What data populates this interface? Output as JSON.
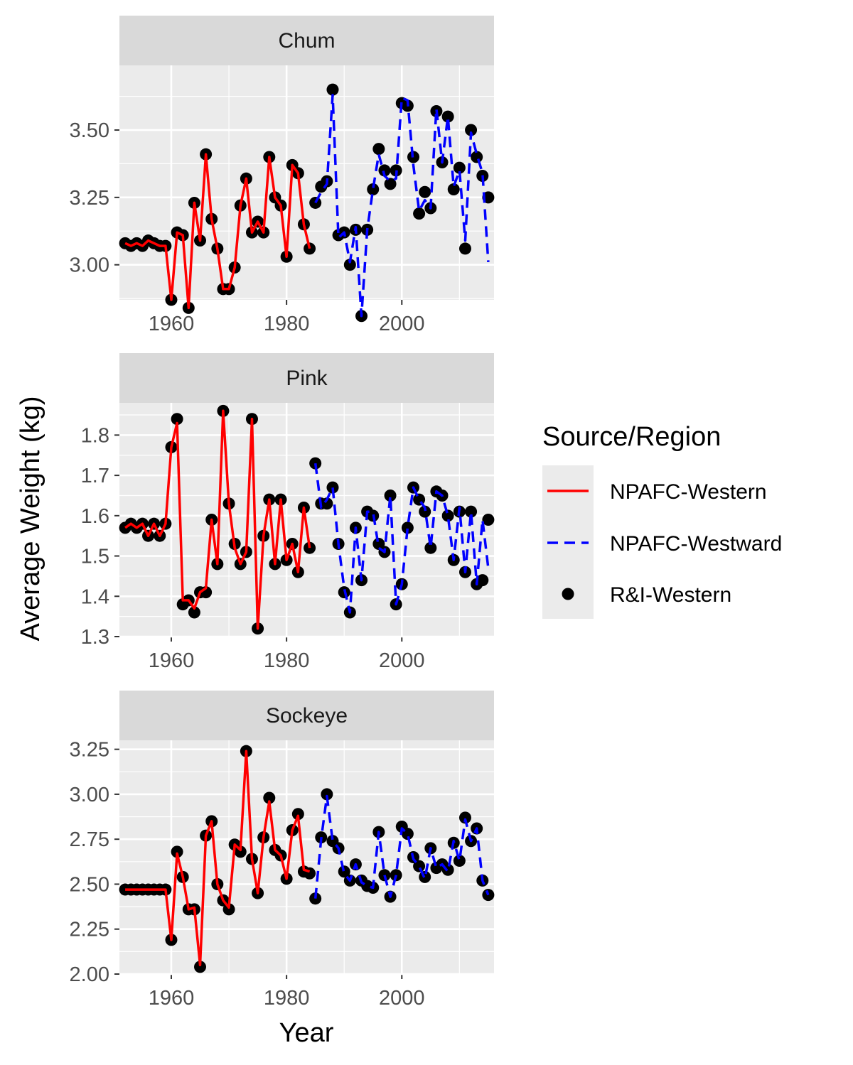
{
  "chart_data": {
    "type": "line",
    "xlabel": "Year",
    "ylabel": "Average Weight (kg)",
    "xlim": [
      1951,
      2016
    ],
    "x_ticks": [
      1960,
      1980,
      2000
    ],
    "x_tick_labels": [
      "1960",
      "1980",
      "2000"
    ],
    "legend": {
      "title": "Source/Region",
      "position": "right",
      "entries": [
        {
          "label": "NPAFC-Western",
          "color": "#ff0000",
          "style": "solid line"
        },
        {
          "label": "NPAFC-Westward",
          "color": "#0000ff",
          "style": "dashed line"
        },
        {
          "label": "R&I-Western",
          "color": "#000000",
          "style": "point"
        }
      ]
    },
    "grid": true,
    "facets": [
      {
        "title": "Chum",
        "ylim": [
          2.87,
          3.74
        ],
        "y_ticks": [
          3.0,
          3.25,
          3.5
        ],
        "y_tick_labels": [
          "3.00",
          "3.25",
          "3.50"
        ],
        "series": [
          {
            "name": "NPAFC-Western",
            "x": [
              1952,
              1953,
              1954,
              1955,
              1956,
              1957,
              1958,
              1959,
              1960,
              1961,
              1962,
              1963,
              1964,
              1965,
              1966,
              1967,
              1968,
              1969,
              1970,
              1971,
              1972,
              1973,
              1974,
              1975,
              1976,
              1977,
              1978,
              1979,
              1980,
              1981,
              1982,
              1983,
              1984
            ],
            "y": [
              3.08,
              3.07,
              3.08,
              3.07,
              3.09,
              3.08,
              3.07,
              3.07,
              2.87,
              3.12,
              3.11,
              2.84,
              3.23,
              3.09,
              3.41,
              3.17,
              3.06,
              2.91,
              2.91,
              2.99,
              3.22,
              3.32,
              3.12,
              3.16,
              3.12,
              3.4,
              3.25,
              3.22,
              3.03,
              3.37,
              3.34,
              3.15,
              3.06
            ]
          },
          {
            "name": "NPAFC-Westward",
            "x": [
              1985,
              1986,
              1987,
              1988,
              1989,
              1990,
              1991,
              1992,
              1993,
              1994,
              1995,
              1996,
              1997,
              1998,
              1999,
              2000,
              2001,
              2002,
              2003,
              2004,
              2005,
              2006,
              2007,
              2008,
              2009,
              2010,
              2011,
              2012,
              2013,
              2014,
              2015
            ],
            "y": [
              3.23,
              3.27,
              3.3,
              3.63,
              3.1,
              3.12,
              3.01,
              3.14,
              2.81,
              3.13,
              3.28,
              3.41,
              3.33,
              3.31,
              3.32,
              3.62,
              3.61,
              3.37,
              3.2,
              3.24,
              3.21,
              3.58,
              3.38,
              3.55,
              3.29,
              3.35,
              3.09,
              3.49,
              3.41,
              3.34,
              3.01
            ]
          },
          {
            "name": "R&I-Western",
            "x": [
              1952,
              1953,
              1954,
              1955,
              1956,
              1957,
              1958,
              1959,
              1960,
              1961,
              1962,
              1963,
              1964,
              1965,
              1966,
              1967,
              1968,
              1969,
              1970,
              1971,
              1972,
              1973,
              1974,
              1975,
              1976,
              1977,
              1978,
              1979,
              1980,
              1981,
              1982,
              1983,
              1984,
              1985,
              1986,
              1987,
              1988,
              1989,
              1990,
              1991,
              1992,
              1993,
              1994,
              1995,
              1996,
              1997,
              1998,
              1999,
              2000,
              2001,
              2002,
              2003,
              2004,
              2005,
              2006,
              2007,
              2008,
              2009,
              2010,
              2011,
              2012,
              2013,
              2014,
              2015
            ],
            "y": [
              3.08,
              3.07,
              3.08,
              3.07,
              3.09,
              3.08,
              3.07,
              3.07,
              2.87,
              3.12,
              3.11,
              2.84,
              3.23,
              3.09,
              3.41,
              3.17,
              3.06,
              2.91,
              2.91,
              2.99,
              3.22,
              3.32,
              3.12,
              3.16,
              3.12,
              3.4,
              3.25,
              3.22,
              3.03,
              3.37,
              3.34,
              3.15,
              3.06,
              3.23,
              3.29,
              3.31,
              3.65,
              3.11,
              3.12,
              3.0,
              3.13,
              2.81,
              3.13,
              3.28,
              3.43,
              3.35,
              3.3,
              3.35,
              3.6,
              3.59,
              3.4,
              3.19,
              3.27,
              3.21,
              3.57,
              3.38,
              3.55,
              3.28,
              3.36,
              3.06,
              3.5,
              3.4,
              3.33,
              3.25
            ]
          }
        ]
      },
      {
        "title": "Pink",
        "ylim": [
          1.3,
          1.88
        ],
        "y_ticks": [
          1.3,
          1.4,
          1.5,
          1.6,
          1.7,
          1.8
        ],
        "y_tick_labels": [
          "1.3",
          "1.4",
          "1.5",
          "1.6",
          "1.7",
          "1.8"
        ],
        "series": [
          {
            "name": "NPAFC-Western",
            "x": [
              1952,
              1953,
              1954,
              1955,
              1956,
              1957,
              1958,
              1959,
              1960,
              1961,
              1962,
              1963,
              1964,
              1965,
              1966,
              1967,
              1968,
              1969,
              1970,
              1971,
              1972,
              1973,
              1974,
              1975,
              1976,
              1977,
              1978,
              1979,
              1980,
              1981,
              1982,
              1983,
              1984
            ],
            "y": [
              1.57,
              1.58,
              1.57,
              1.58,
              1.55,
              1.58,
              1.55,
              1.58,
              1.77,
              1.83,
              1.39,
              1.39,
              1.37,
              1.41,
              1.42,
              1.59,
              1.48,
              1.86,
              1.63,
              1.52,
              1.48,
              1.51,
              1.84,
              1.32,
              1.55,
              1.64,
              1.48,
              1.64,
              1.49,
              1.53,
              1.46,
              1.62,
              1.52
            ]
          },
          {
            "name": "NPAFC-Westward",
            "x": [
              1985,
              1986,
              1987,
              1988,
              1989,
              1990,
              1991,
              1992,
              1993,
              1994,
              1995,
              1996,
              1997,
              1998,
              1999,
              2000,
              2001,
              2002,
              2003,
              2004,
              2005,
              2006,
              2007,
              2008,
              2009,
              2010,
              2011,
              2012,
              2013,
              2014,
              2015
            ],
            "y": [
              1.73,
              1.62,
              1.64,
              1.67,
              1.53,
              1.42,
              1.36,
              1.57,
              1.44,
              1.61,
              1.61,
              1.52,
              1.51,
              1.65,
              1.38,
              1.43,
              1.57,
              1.67,
              1.64,
              1.62,
              1.52,
              1.66,
              1.65,
              1.6,
              1.49,
              1.62,
              1.46,
              1.61,
              1.43,
              1.59,
              1.47
            ]
          },
          {
            "name": "R&I-Western",
            "x": [
              1952,
              1953,
              1954,
              1955,
              1956,
              1957,
              1958,
              1959,
              1960,
              1961,
              1962,
              1963,
              1964,
              1965,
              1966,
              1967,
              1968,
              1969,
              1970,
              1971,
              1972,
              1973,
              1974,
              1975,
              1976,
              1977,
              1978,
              1979,
              1980,
              1981,
              1982,
              1983,
              1984,
              1985,
              1986,
              1987,
              1988,
              1989,
              1990,
              1991,
              1992,
              1993,
              1994,
              1995,
              1996,
              1997,
              1998,
              1999,
              2000,
              2001,
              2002,
              2003,
              2004,
              2005,
              2006,
              2007,
              2008,
              2009,
              2010,
              2011,
              2012,
              2013,
              2014,
              2015
            ],
            "y": [
              1.57,
              1.58,
              1.57,
              1.58,
              1.55,
              1.58,
              1.55,
              1.58,
              1.77,
              1.84,
              1.38,
              1.39,
              1.36,
              1.41,
              1.41,
              1.59,
              1.48,
              1.86,
              1.63,
              1.53,
              1.48,
              1.51,
              1.84,
              1.32,
              1.55,
              1.64,
              1.48,
              1.64,
              1.49,
              1.53,
              1.46,
              1.62,
              1.52,
              1.73,
              1.63,
              1.63,
              1.67,
              1.53,
              1.41,
              1.36,
              1.57,
              1.44,
              1.61,
              1.6,
              1.53,
              1.51,
              1.65,
              1.38,
              1.43,
              1.57,
              1.67,
              1.64,
              1.61,
              1.52,
              1.66,
              1.65,
              1.6,
              1.49,
              1.61,
              1.46,
              1.61,
              1.43,
              1.44,
              1.59
            ]
          }
        ]
      },
      {
        "title": "Sockeye",
        "ylim": [
          2.0,
          3.3
        ],
        "y_ticks": [
          2.0,
          2.25,
          2.5,
          2.75,
          3.0,
          3.25
        ],
        "y_tick_labels": [
          "2.00",
          "2.25",
          "2.50",
          "2.75",
          "3.00",
          "3.25"
        ],
        "series": [
          {
            "name": "NPAFC-Western",
            "x": [
              1952,
              1953,
              1954,
              1955,
              1956,
              1957,
              1958,
              1959,
              1960,
              1961,
              1962,
              1963,
              1964,
              1965,
              1966,
              1967,
              1968,
              1969,
              1970,
              1971,
              1972,
              1973,
              1974,
              1975,
              1976,
              1977,
              1978,
              1979,
              1980,
              1981,
              1982,
              1983,
              1984
            ],
            "y": [
              2.47,
              2.47,
              2.47,
              2.47,
              2.47,
              2.47,
              2.47,
              2.47,
              2.19,
              2.67,
              2.54,
              2.36,
              2.37,
              2.05,
              2.77,
              2.85,
              2.5,
              2.41,
              2.37,
              2.72,
              2.69,
              3.24,
              2.64,
              2.45,
              2.76,
              2.96,
              2.69,
              2.66,
              2.53,
              2.8,
              2.88,
              2.58,
              2.57
            ]
          },
          {
            "name": "NPAFC-Westward",
            "x": [
              1985,
              1986,
              1987,
              1988,
              1989,
              1990,
              1991,
              1992,
              1993,
              1994,
              1995,
              1996,
              1997,
              1998,
              1999,
              2000,
              2001,
              2002,
              2003,
              2004,
              2005,
              2006,
              2007,
              2008,
              2009,
              2010,
              2011,
              2012,
              2013,
              2014,
              2015
            ],
            "y": [
              2.42,
              2.75,
              2.99,
              2.74,
              2.7,
              2.56,
              2.52,
              2.61,
              2.51,
              2.49,
              2.48,
              2.79,
              2.55,
              2.43,
              2.55,
              2.81,
              2.78,
              2.64,
              2.6,
              2.53,
              2.7,
              2.59,
              2.61,
              2.57,
              2.74,
              2.63,
              2.86,
              2.74,
              2.81,
              2.52,
              2.44
            ]
          },
          {
            "name": "R&I-Western",
            "x": [
              1952,
              1953,
              1954,
              1955,
              1956,
              1957,
              1958,
              1959,
              1960,
              1961,
              1962,
              1963,
              1964,
              1965,
              1966,
              1967,
              1968,
              1969,
              1970,
              1971,
              1972,
              1973,
              1974,
              1975,
              1976,
              1977,
              1978,
              1979,
              1980,
              1981,
              1982,
              1983,
              1984,
              1985,
              1986,
              1987,
              1988,
              1989,
              1990,
              1991,
              1992,
              1993,
              1994,
              1995,
              1996,
              1997,
              1998,
              1999,
              2000,
              2001,
              2002,
              2003,
              2004,
              2005,
              2006,
              2007,
              2008,
              2009,
              2010,
              2011,
              2012,
              2013,
              2014,
              2015
            ],
            "y": [
              2.47,
              2.47,
              2.47,
              2.47,
              2.47,
              2.47,
              2.47,
              2.47,
              2.19,
              2.68,
              2.54,
              2.36,
              2.36,
              2.04,
              2.77,
              2.85,
              2.5,
              2.41,
              2.36,
              2.72,
              2.68,
              3.24,
              2.64,
              2.45,
              2.76,
              2.98,
              2.69,
              2.66,
              2.53,
              2.8,
              2.89,
              2.57,
              2.56,
              2.42,
              2.76,
              3.0,
              2.74,
              2.7,
              2.57,
              2.52,
              2.61,
              2.52,
              2.49,
              2.48,
              2.79,
              2.55,
              2.43,
              2.55,
              2.82,
              2.78,
              2.65,
              2.6,
              2.54,
              2.7,
              2.59,
              2.61,
              2.58,
              2.73,
              2.63,
              2.87,
              2.74,
              2.81,
              2.52,
              2.44
            ]
          }
        ]
      }
    ]
  }
}
